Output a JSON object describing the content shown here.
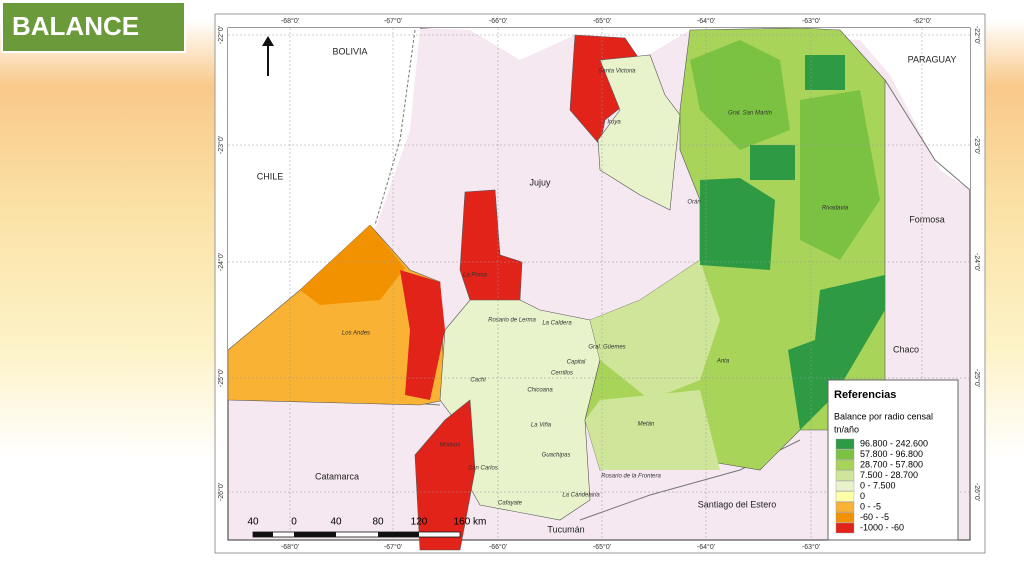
{
  "header": {
    "title": "BALANCE"
  },
  "map": {
    "graticule": {
      "top": [
        "-68°0'",
        "-67°0'",
        "-66°0'",
        "-65°0'",
        "-64°0'",
        "-63°0'",
        "-62°0'"
      ],
      "bottom": [
        "-68°0'",
        "-67°0'",
        "-66°0'",
        "-65°0'",
        "-64°0'",
        "-63°0'"
      ],
      "left": [
        "-22°0'",
        "-23°0'",
        "-24°0'",
        "-25°0'",
        "-26°0'"
      ],
      "right": [
        "-22°0'",
        "-23°0'",
        "-24°0'",
        "-25°0'",
        "-26°0'"
      ]
    },
    "regions": [
      "BOLIVIA",
      "PARAGUAY",
      "CHILE",
      "Jujuy",
      "Formosa",
      "Chaco",
      "Catamarca",
      "Santiago del Estero",
      "Tucumán"
    ],
    "departments": [
      "Santa Victoria",
      "Iruya",
      "Gral. San Martín",
      "Orán",
      "Rivadavia",
      "La Poma",
      "Los Andes",
      "Rosario de Lerma",
      "La Caldera",
      "Capital",
      "Gral. Güemes",
      "Cerrillos",
      "Cachi",
      "Chicoana",
      "Anta",
      "La Viña",
      "Metán",
      "Molinos",
      "San Carlos",
      "Guachipas",
      "Rosario de la Frontera",
      "Cafayate",
      "La Candelaria"
    ],
    "scale": {
      "labels": [
        "40",
        "0",
        "40",
        "80",
        "120",
        "160 km"
      ]
    },
    "legend": {
      "title": "Referencias",
      "subtitle": "Balance por radio censal",
      "unit": "tn/año",
      "items": [
        {
          "label": "96.800 - 242.600",
          "color": "#2e9a44"
        },
        {
          "label": "57.800 - 96.800",
          "color": "#7cc242"
        },
        {
          "label": "28.700 - 57.800",
          "color": "#a8d45a"
        },
        {
          "label": "7.500 - 28.700",
          "color": "#cfe69a"
        },
        {
          "label": "0 - 7.500",
          "color": "#e8f3cc"
        },
        {
          "label": "0",
          "color": "#ffffa8"
        },
        {
          "label": "0 - -5",
          "color": "#f9b233"
        },
        {
          "label": "-60 - -5",
          "color": "#f39200"
        },
        {
          "label": "-1000 - -60",
          "color": "#e2231a"
        }
      ]
    }
  }
}
